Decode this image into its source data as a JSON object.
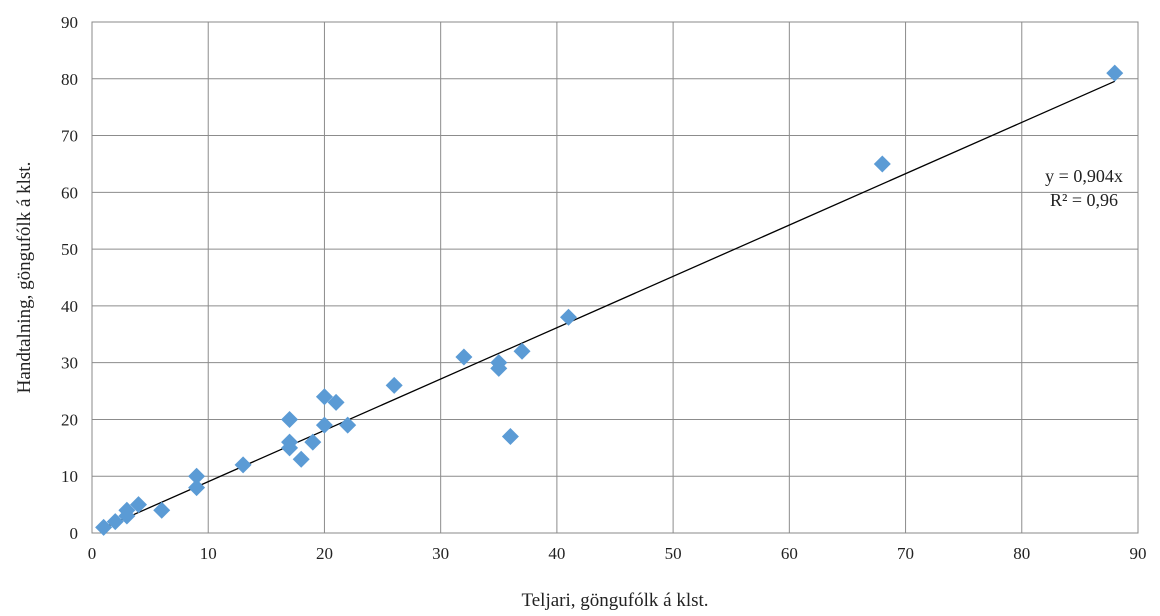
{
  "chart_data": {
    "type": "scatter",
    "title": "",
    "xlabel": "Teljari, göngufólk á klst.",
    "ylabel": "Handtalning, göngufólk á klst.",
    "xlim": [
      0,
      90
    ],
    "ylim": [
      0,
      90
    ],
    "xticks": [
      0,
      10,
      20,
      30,
      40,
      50,
      60,
      70,
      80,
      90
    ],
    "yticks": [
      0,
      10,
      20,
      30,
      40,
      50,
      60,
      70,
      80,
      90
    ],
    "grid": true,
    "marker_color": "#5B9BD5",
    "trendline": {
      "slope": 0.904,
      "x_range": [
        1,
        88
      ],
      "equation": "y = 0,904x",
      "r_squared": "R² = 0,96"
    },
    "points": [
      {
        "x": 1,
        "y": 1
      },
      {
        "x": 2,
        "y": 2
      },
      {
        "x": 3,
        "y": 3
      },
      {
        "x": 3,
        "y": 4
      },
      {
        "x": 4,
        "y": 5
      },
      {
        "x": 6,
        "y": 4
      },
      {
        "x": 9,
        "y": 8
      },
      {
        "x": 9,
        "y": 10
      },
      {
        "x": 13,
        "y": 12
      },
      {
        "x": 17,
        "y": 15
      },
      {
        "x": 17,
        "y": 16
      },
      {
        "x": 17,
        "y": 20
      },
      {
        "x": 18,
        "y": 13
      },
      {
        "x": 19,
        "y": 16
      },
      {
        "x": 20,
        "y": 19
      },
      {
        "x": 20,
        "y": 24
      },
      {
        "x": 21,
        "y": 23
      },
      {
        "x": 22,
        "y": 19
      },
      {
        "x": 26,
        "y": 26
      },
      {
        "x": 32,
        "y": 31
      },
      {
        "x": 35,
        "y": 29
      },
      {
        "x": 35,
        "y": 30
      },
      {
        "x": 36,
        "y": 17
      },
      {
        "x": 37,
        "y": 32
      },
      {
        "x": 41,
        "y": 38
      },
      {
        "x": 68,
        "y": 65
      },
      {
        "x": 88,
        "y": 81
      }
    ]
  }
}
